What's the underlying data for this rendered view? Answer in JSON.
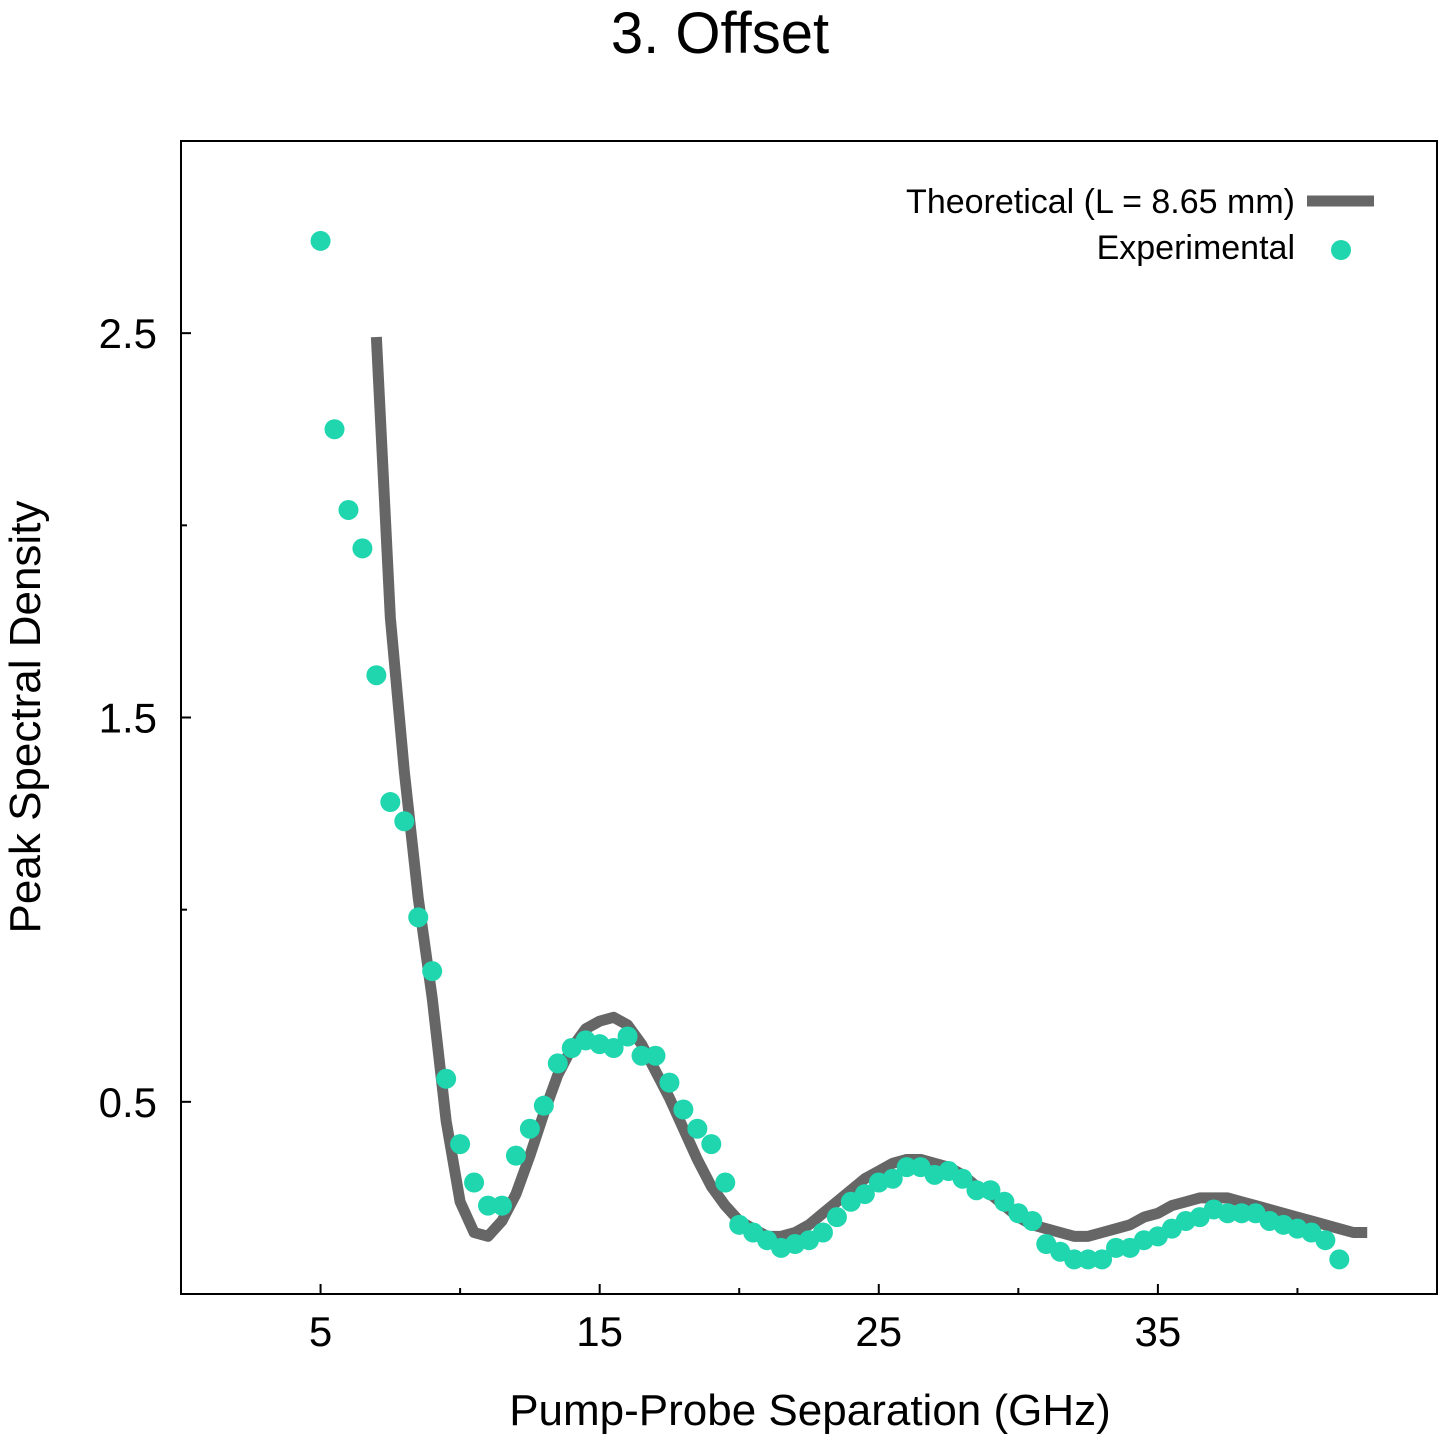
{
  "chart_data": {
    "type": "line",
    "title": "3. Offset",
    "x_label": "Pump-Probe Separation (GHz)",
    "y_label": "Peak Spectral Density",
    "xlim": [
      0,
      45
    ],
    "ylim": [
      0,
      3
    ],
    "xticks": [
      5,
      15,
      25,
      35
    ],
    "yticks": [
      0.5,
      1.5,
      2.5
    ],
    "xminorticks": [
      10,
      20,
      30,
      40
    ],
    "yminorticks": [
      1,
      2
    ],
    "legend": "upper right",
    "series": [
      {
        "name": "Theoretical (L = 8.65 mm)",
        "style": "line",
        "color": "#666666",
        "x": [
          7,
          7.5,
          8,
          8.5,
          9,
          9.5,
          10,
          10.5,
          11,
          11.5,
          12,
          12.5,
          13,
          13.5,
          14,
          14.5,
          15,
          15.5,
          16,
          16.5,
          17,
          17.5,
          18,
          18.5,
          19,
          19.5,
          20,
          20.5,
          21,
          21.5,
          22,
          22.5,
          23,
          23.5,
          24,
          24.5,
          25,
          25.5,
          26,
          26.5,
          27,
          27.5,
          28,
          28.5,
          29,
          29.5,
          30,
          30.5,
          31,
          31.5,
          32,
          32.5,
          33,
          33.5,
          34,
          34.5,
          35,
          35.5,
          36,
          36.5,
          37,
          37.5,
          38,
          38.5,
          39,
          39.5,
          40,
          40.5,
          41,
          41.5,
          42,
          42.5
        ],
        "values": [
          2.49,
          1.76,
          1.36,
          1.03,
          0.77,
          0.45,
          0.24,
          0.16,
          0.15,
          0.19,
          0.26,
          0.36,
          0.47,
          0.57,
          0.64,
          0.69,
          0.71,
          0.72,
          0.7,
          0.65,
          0.58,
          0.51,
          0.43,
          0.35,
          0.28,
          0.23,
          0.19,
          0.17,
          0.15,
          0.15,
          0.16,
          0.18,
          0.21,
          0.24,
          0.27,
          0.3,
          0.32,
          0.34,
          0.35,
          0.35,
          0.34,
          0.33,
          0.31,
          0.28,
          0.26,
          0.23,
          0.2,
          0.18,
          0.17,
          0.16,
          0.15,
          0.15,
          0.16,
          0.17,
          0.18,
          0.2,
          0.21,
          0.23,
          0.24,
          0.25,
          0.25,
          0.25,
          0.24,
          0.23,
          0.22,
          0.21,
          0.2,
          0.19,
          0.18,
          0.17,
          0.16,
          0.16
        ]
      },
      {
        "name": "Experimental",
        "style": "points",
        "color": "#1fd6ae",
        "x": [
          5,
          5.5,
          6,
          6.5,
          7,
          7.5,
          8,
          8.5,
          9,
          9.5,
          10,
          10.5,
          11,
          11.5,
          12,
          12.5,
          13,
          13.5,
          14,
          14.5,
          15,
          15.5,
          16,
          16.5,
          17,
          17.5,
          18,
          18.5,
          19,
          19.5,
          20,
          20.5,
          21,
          21.5,
          22,
          22.5,
          23,
          23.5,
          24,
          24.5,
          25,
          25.5,
          26,
          26.5,
          27,
          27.5,
          28,
          28.5,
          29,
          29.5,
          30,
          30.5,
          31,
          31.5,
          32,
          32.5,
          33,
          33.5,
          34,
          34.5,
          35,
          35.5,
          36,
          36.5,
          37,
          37.5,
          38,
          38.5,
          39,
          39.5,
          40,
          40.5,
          41,
          41.5
        ],
        "values": [
          2.74,
          2.25,
          2.04,
          1.94,
          1.61,
          1.28,
          1.23,
          0.98,
          0.84,
          0.56,
          0.39,
          0.29,
          0.23,
          0.23,
          0.36,
          0.43,
          0.49,
          0.6,
          0.64,
          0.66,
          0.65,
          0.64,
          0.67,
          0.62,
          0.62,
          0.55,
          0.48,
          0.43,
          0.39,
          0.29,
          0.18,
          0.16,
          0.14,
          0.12,
          0.13,
          0.14,
          0.16,
          0.2,
          0.24,
          0.26,
          0.29,
          0.3,
          0.33,
          0.33,
          0.31,
          0.32,
          0.3,
          0.27,
          0.27,
          0.24,
          0.21,
          0.19,
          0.13,
          0.11,
          0.09,
          0.09,
          0.09,
          0.12,
          0.12,
          0.14,
          0.15,
          0.17,
          0.19,
          0.2,
          0.22,
          0.21,
          0.21,
          0.21,
          0.19,
          0.18,
          0.17,
          0.16,
          0.14,
          0.09
        ]
      }
    ]
  }
}
